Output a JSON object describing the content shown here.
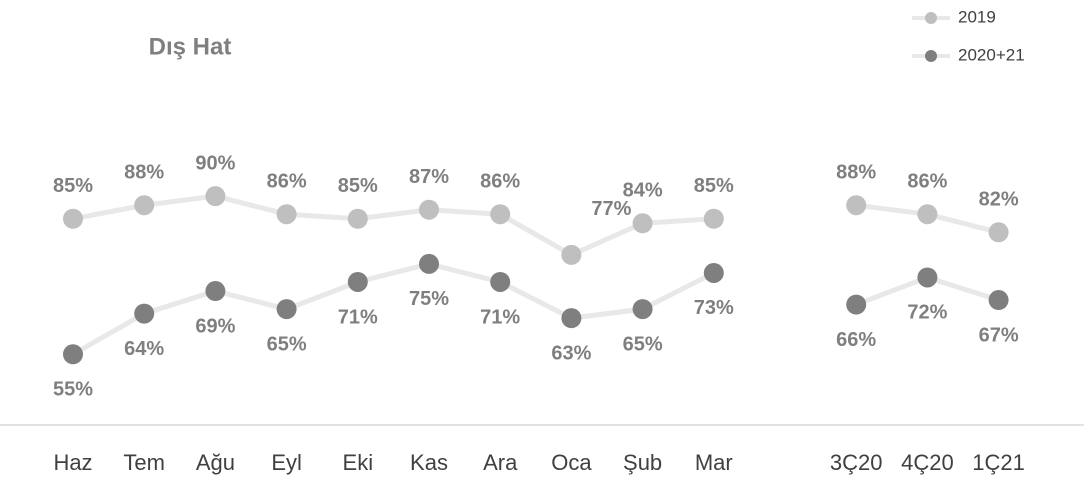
{
  "chart_data": {
    "type": "line",
    "title": "Dış Hat",
    "categories": [
      "Haz",
      "Tem",
      "Ağu",
      "Eyl",
      "Eki",
      "Kas",
      "Ara",
      "Oca",
      "Şub",
      "Mar",
      null,
      "3Ç20",
      "4Ç20",
      "1Ç21"
    ],
    "series": [
      {
        "name": "2019",
        "color": "#bfbfbf",
        "values": [
          85,
          88,
          90,
          86,
          85,
          87,
          86,
          77,
          84,
          85,
          null,
          88,
          86,
          82
        ],
        "value_labels": [
          "85%",
          "88%",
          "90%",
          "86%",
          "85%",
          "87%",
          "86%",
          "77%",
          "84%",
          "85%",
          null,
          "88%",
          "86%",
          "82%"
        ]
      },
      {
        "name": "2020+21",
        "color": "#7f7f7f",
        "values": [
          55,
          64,
          69,
          65,
          71,
          75,
          71,
          63,
          65,
          73,
          null,
          66,
          72,
          67
        ],
        "value_labels": [
          "55%",
          "64%",
          "69%",
          "65%",
          "71%",
          "75%",
          "71%",
          "63%",
          "65%",
          "73%",
          null,
          "66%",
          "72%",
          "67%"
        ]
      }
    ],
    "ylim": [
      40,
      100
    ],
    "legend": "top-right"
  }
}
